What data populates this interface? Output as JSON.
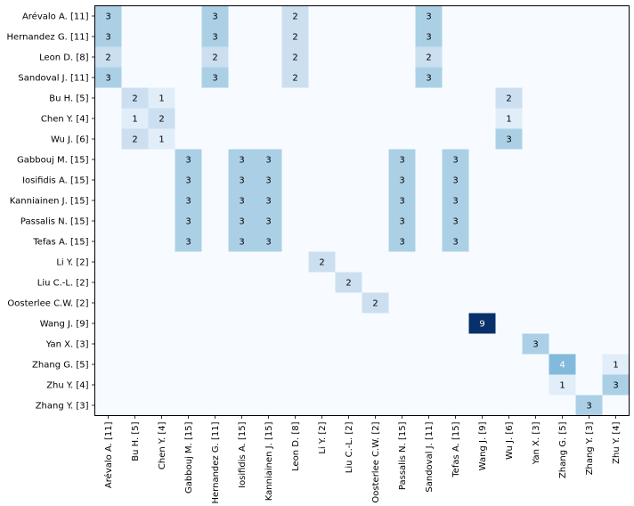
{
  "chart_data": {
    "type": "heatmap",
    "title": "",
    "xlabel": "",
    "ylabel": "",
    "colormap": "Blues",
    "color_range": [
      0,
      9
    ],
    "y_labels": [
      "Arévalo A. [11]",
      "Hernandez G. [11]",
      "Leon D. [8]",
      "Sandoval J. [11]",
      "Bu H. [5]",
      "Chen Y. [4]",
      "Wu J. [6]",
      "Gabbouj M. [15]",
      "Iosifidis A. [15]",
      "Kanniainen J. [15]",
      "Passalis N. [15]",
      "Tefas A. [15]",
      "Li Y. [2]",
      "Liu C.-L. [2]",
      "Oosterlee C.W. [2]",
      "Wang J. [9]",
      "Yan X. [3]",
      "Zhang G. [5]",
      "Zhu Y. [4]",
      "Zhang Y. [3]"
    ],
    "x_labels": [
      "Arévalo A. [11]",
      "Bu H. [5]",
      "Chen Y. [4]",
      "Gabbouj M. [15]",
      "Hernandez G. [11]",
      "Iosifidis A. [15]",
      "Kanniainen J. [15]",
      "Leon D. [8]",
      "Li Y. [2]",
      "Liu C.-L. [2]",
      "Oosterlee C.W. [2]",
      "Passalis N. [15]",
      "Sandoval J. [11]",
      "Tefas A. [15]",
      "Wang J. [9]",
      "Wu J. [6]",
      "Yan X. [3]",
      "Zhang G. [5]",
      "Zhang Y. [3]",
      "Zhu Y. [4]"
    ],
    "values": [
      [
        3,
        0,
        0,
        0,
        3,
        0,
        0,
        2,
        0,
        0,
        0,
        0,
        3,
        0,
        0,
        0,
        0,
        0,
        0,
        0
      ],
      [
        3,
        0,
        0,
        0,
        3,
        0,
        0,
        2,
        0,
        0,
        0,
        0,
        3,
        0,
        0,
        0,
        0,
        0,
        0,
        0
      ],
      [
        2,
        0,
        0,
        0,
        2,
        0,
        0,
        2,
        0,
        0,
        0,
        0,
        2,
        0,
        0,
        0,
        0,
        0,
        0,
        0
      ],
      [
        3,
        0,
        0,
        0,
        3,
        0,
        0,
        2,
        0,
        0,
        0,
        0,
        3,
        0,
        0,
        0,
        0,
        0,
        0,
        0
      ],
      [
        0,
        2,
        1,
        0,
        0,
        0,
        0,
        0,
        0,
        0,
        0,
        0,
        0,
        0,
        0,
        2,
        0,
        0,
        0,
        0
      ],
      [
        0,
        1,
        2,
        0,
        0,
        0,
        0,
        0,
        0,
        0,
        0,
        0,
        0,
        0,
        0,
        1,
        0,
        0,
        0,
        0
      ],
      [
        0,
        2,
        1,
        0,
        0,
        0,
        0,
        0,
        0,
        0,
        0,
        0,
        0,
        0,
        0,
        3,
        0,
        0,
        0,
        0
      ],
      [
        0,
        0,
        0,
        3,
        0,
        3,
        3,
        0,
        0,
        0,
        0,
        3,
        0,
        3,
        0,
        0,
        0,
        0,
        0,
        0
      ],
      [
        0,
        0,
        0,
        3,
        0,
        3,
        3,
        0,
        0,
        0,
        0,
        3,
        0,
        3,
        0,
        0,
        0,
        0,
        0,
        0
      ],
      [
        0,
        0,
        0,
        3,
        0,
        3,
        3,
        0,
        0,
        0,
        0,
        3,
        0,
        3,
        0,
        0,
        0,
        0,
        0,
        0
      ],
      [
        0,
        0,
        0,
        3,
        0,
        3,
        3,
        0,
        0,
        0,
        0,
        3,
        0,
        3,
        0,
        0,
        0,
        0,
        0,
        0
      ],
      [
        0,
        0,
        0,
        3,
        0,
        3,
        3,
        0,
        0,
        0,
        0,
        3,
        0,
        3,
        0,
        0,
        0,
        0,
        0,
        0
      ],
      [
        0,
        0,
        0,
        0,
        0,
        0,
        0,
        0,
        2,
        0,
        0,
        0,
        0,
        0,
        0,
        0,
        0,
        0,
        0,
        0
      ],
      [
        0,
        0,
        0,
        0,
        0,
        0,
        0,
        0,
        0,
        2,
        0,
        0,
        0,
        0,
        0,
        0,
        0,
        0,
        0,
        0
      ],
      [
        0,
        0,
        0,
        0,
        0,
        0,
        0,
        0,
        0,
        0,
        2,
        0,
        0,
        0,
        0,
        0,
        0,
        0,
        0,
        0
      ],
      [
        0,
        0,
        0,
        0,
        0,
        0,
        0,
        0,
        0,
        0,
        0,
        0,
        0,
        0,
        9,
        0,
        0,
        0,
        0,
        0
      ],
      [
        0,
        0,
        0,
        0,
        0,
        0,
        0,
        0,
        0,
        0,
        0,
        0,
        0,
        0,
        0,
        0,
        3,
        0,
        0,
        0
      ],
      [
        0,
        0,
        0,
        0,
        0,
        0,
        0,
        0,
        0,
        0,
        0,
        0,
        0,
        0,
        0,
        0,
        0,
        4,
        0,
        1
      ],
      [
        0,
        0,
        0,
        0,
        0,
        0,
        0,
        0,
        0,
        0,
        0,
        0,
        0,
        0,
        0,
        0,
        0,
        1,
        0,
        3
      ],
      [
        0,
        0,
        0,
        0,
        0,
        0,
        0,
        0,
        0,
        0,
        0,
        0,
        0,
        0,
        0,
        0,
        0,
        0,
        3,
        0
      ]
    ],
    "show_zero_labels": false,
    "grid": false,
    "legend": "none"
  }
}
